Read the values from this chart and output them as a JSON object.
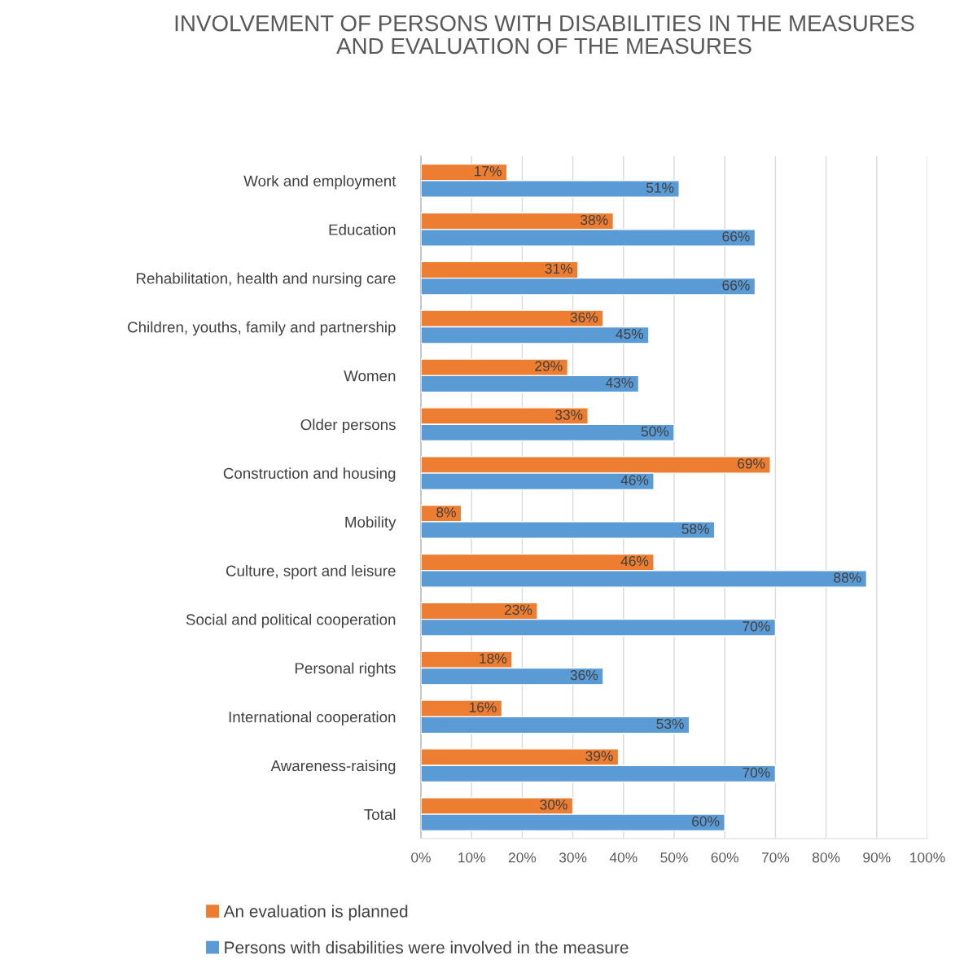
{
  "chart_data": {
    "type": "bar",
    "orientation": "horizontal",
    "title": "INVOLVEMENT OF PERSONS WITH DISABILITIES IN THE MEASURES AND EVALUATION OF THE MEASURES",
    "categories": [
      "Work and employment",
      "Education",
      "Rehabilitation, health and nursing care",
      "Children, youths, family and partnership",
      "Women",
      "Older persons",
      "Construction and housing",
      "Mobility",
      "Culture, sport and leisure",
      "Social and political cooperation",
      "Personal rights",
      "International cooperation",
      "Awareness-raising",
      "Total"
    ],
    "series": [
      {
        "name": "An evaluation is planned",
        "color": "#ed7d31",
        "values": [
          17,
          38,
          31,
          36,
          29,
          33,
          69,
          8,
          46,
          23,
          18,
          16,
          39,
          30
        ],
        "value_labels": [
          "17%",
          "38%",
          "31%",
          "36%",
          "29%",
          "33%",
          "69%",
          "8%",
          "46%",
          "23%",
          "18%",
          "16%",
          "39%",
          "30%"
        ]
      },
      {
        "name": "Persons with disabilities were involved in the measure",
        "color": "#5b9bd5",
        "values": [
          51,
          66,
          66,
          45,
          43,
          50,
          46,
          58,
          88,
          70,
          36,
          53,
          70,
          60
        ],
        "value_labels": [
          "51%",
          "66%",
          "66%",
          "45%",
          "43%",
          "50%",
          "46%",
          "58%",
          "88%",
          "70%",
          "36%",
          "53%",
          "70%",
          "60%"
        ]
      }
    ],
    "xlim": [
      0,
      100
    ],
    "xticks": [
      {
        "value": 0,
        "label": "0%"
      },
      {
        "value": 10,
        "label": "10%"
      },
      {
        "value": 20,
        "label": "20%"
      },
      {
        "value": 30,
        "label": "30%"
      },
      {
        "value": 40,
        "label": "40%"
      },
      {
        "value": 50,
        "label": "50%"
      },
      {
        "value": 60,
        "label": "60%"
      },
      {
        "value": 70,
        "label": "70%"
      },
      {
        "value": 80,
        "label": "80%"
      },
      {
        "value": 90,
        "label": "90%"
      },
      {
        "value": 100,
        "label": "100%"
      }
    ],
    "grid": "x",
    "legend": "bottom"
  }
}
